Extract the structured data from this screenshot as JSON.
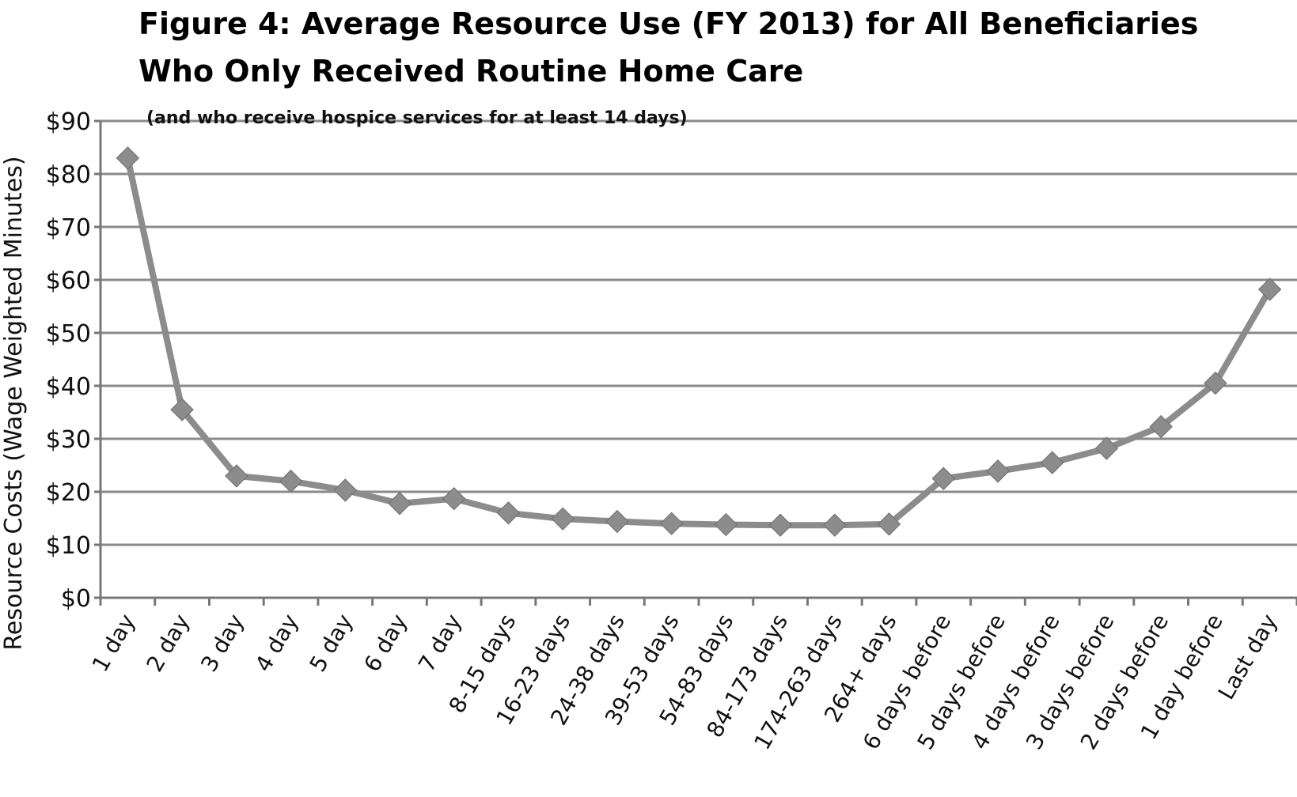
{
  "chart_data": {
    "type": "line",
    "title_line1": "Figure 4:  Average Resource Use (FY 2013) for All Beneficiaries",
    "title_line2": "Who Only Received Routine Home Care",
    "subtitle": "(and who receive hospice services for at least 14 days)",
    "ylabel": "Resource Costs (Wage Weighted Minutes)",
    "xlabel": "",
    "ylim": [
      0,
      90
    ],
    "yticks": [
      "$0",
      "$10",
      "$20",
      "$30",
      "$40",
      "$50",
      "$60",
      "$70",
      "$80",
      "$90"
    ],
    "grid": true,
    "colors": {
      "line": "#8c8c8c",
      "grid": "#8a8a8a",
      "axis": "#777777"
    },
    "categories": [
      "1 day",
      "2 day",
      "3 day",
      "4 day",
      "5 day",
      "6 day",
      "7 day",
      "8-15 days",
      "16-23 days",
      "24-38 days",
      "39-53 days",
      "54-83 days",
      "84-173 days",
      "174-263 days",
      "264+ days",
      "6 days before",
      "5 days before",
      "4 days before",
      "3 days before",
      "2 days before",
      "1 day before",
      "Last day"
    ],
    "series": [
      {
        "name": "Average Resource Use",
        "values": [
          83,
          35.5,
          23,
          22,
          20.3,
          17.8,
          18.7,
          16,
          14.9,
          14.4,
          14,
          13.8,
          13.7,
          13.7,
          13.9,
          22.5,
          23.9,
          25.5,
          28.2,
          32.3,
          40.5,
          58.2
        ]
      }
    ]
  }
}
